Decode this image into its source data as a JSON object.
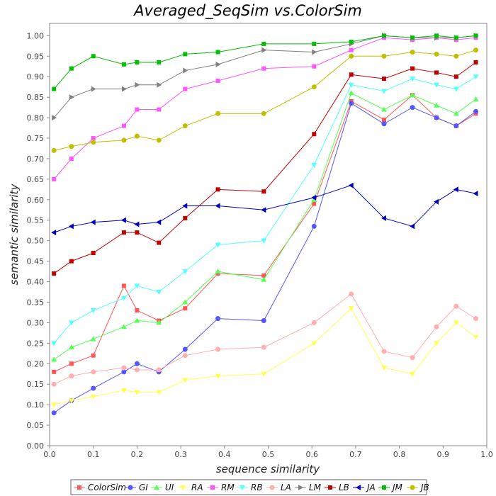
{
  "chart_data": {
    "type": "line",
    "title": "Averaged_SeqSim vs.ColorSim",
    "xlabel": "sequence similarity",
    "ylabel": "semantic similarity",
    "xlim": [
      0.0,
      1.0
    ],
    "ylim": [
      0.0,
      1.03
    ],
    "x_ticks": [
      "0.0",
      "0.1",
      "0.2",
      "0.3",
      "0.4",
      "0.5",
      "0.6",
      "0.7",
      "0.8",
      "0.9",
      "1.0"
    ],
    "y_ticks": [
      "0.00",
      "0.05",
      "0.10",
      "0.15",
      "0.20",
      "0.25",
      "0.30",
      "0.35",
      "0.40",
      "0.45",
      "0.50",
      "0.55",
      "0.60",
      "0.65",
      "0.70",
      "0.75",
      "0.80",
      "0.85",
      "0.90",
      "0.95",
      "1.00"
    ],
    "grid": false,
    "legend_position": "bottom",
    "x": [
      0.01,
      0.05,
      0.1,
      0.17,
      0.2,
      0.25,
      0.31,
      0.385,
      0.49,
      0.605,
      0.69,
      0.765,
      0.83,
      0.885,
      0.93,
      0.975
    ],
    "series": [
      {
        "name": "ColorSim",
        "color": "#ff5555",
        "marker": "square",
        "values": [
          0.18,
          0.2,
          0.22,
          0.39,
          0.33,
          0.305,
          0.335,
          0.42,
          0.415,
          0.59,
          0.84,
          0.795,
          0.855,
          0.8,
          0.78,
          0.81
        ]
      },
      {
        "name": "GI",
        "color": "#5555ff",
        "marker": "circle",
        "values": [
          0.08,
          0.11,
          0.14,
          0.18,
          0.2,
          0.18,
          0.235,
          0.31,
          0.305,
          0.535,
          0.835,
          0.785,
          0.825,
          0.8,
          0.78,
          0.815
        ]
      },
      {
        "name": "UI",
        "color": "#55ff55",
        "marker": "triangle-up",
        "values": [
          0.21,
          0.24,
          0.26,
          0.29,
          0.305,
          0.3,
          0.35,
          0.425,
          0.405,
          0.6,
          0.86,
          0.82,
          0.855,
          0.83,
          0.81,
          0.845
        ]
      },
      {
        "name": "RA",
        "color": "#ffff55",
        "marker": "triangle-down",
        "values": [
          0.1,
          0.11,
          0.12,
          0.135,
          0.13,
          0.13,
          0.16,
          0.17,
          0.175,
          0.25,
          0.335,
          0.19,
          0.175,
          0.25,
          0.3,
          0.265
        ]
      },
      {
        "name": "RM",
        "color": "#ff55ff",
        "marker": "square",
        "values": [
          0.65,
          0.7,
          0.75,
          0.78,
          0.82,
          0.82,
          0.87,
          0.89,
          0.92,
          0.925,
          0.965,
          0.995,
          0.99,
          0.995,
          0.99,
          0.995
        ]
      },
      {
        "name": "RB",
        "color": "#55ffff",
        "marker": "triangle-down",
        "values": [
          0.25,
          0.3,
          0.33,
          0.36,
          0.39,
          0.375,
          0.425,
          0.49,
          0.5,
          0.685,
          0.88,
          0.865,
          0.895,
          0.88,
          0.87,
          0.9
        ]
      },
      {
        "name": "LA",
        "color": "#ffafaf",
        "marker": "circle",
        "values": [
          0.15,
          0.17,
          0.18,
          0.19,
          0.185,
          0.185,
          0.22,
          0.235,
          0.24,
          0.3,
          0.37,
          0.23,
          0.215,
          0.29,
          0.34,
          0.31
        ]
      },
      {
        "name": "LM",
        "color": "#808080",
        "marker": "triangle-right",
        "values": [
          0.8,
          0.85,
          0.87,
          0.87,
          0.88,
          0.88,
          0.915,
          0.93,
          0.965,
          0.96,
          0.98,
          1.0,
          0.995,
          0.995,
          0.995,
          1.0
        ]
      },
      {
        "name": "LB",
        "color": "#c00000",
        "marker": "square",
        "values": [
          0.42,
          0.45,
          0.47,
          0.52,
          0.52,
          0.495,
          0.555,
          0.625,
          0.62,
          0.76,
          0.905,
          0.895,
          0.92,
          0.91,
          0.9,
          0.935
        ]
      },
      {
        "name": "JA",
        "color": "#0000c0",
        "marker": "triangle-left",
        "values": [
          0.52,
          0.535,
          0.545,
          0.55,
          0.54,
          0.545,
          0.585,
          0.585,
          0.575,
          0.605,
          0.635,
          0.555,
          0.535,
          0.595,
          0.625,
          0.615
        ]
      },
      {
        "name": "JM",
        "color": "#00c000",
        "marker": "square",
        "values": [
          0.87,
          0.92,
          0.95,
          0.93,
          0.935,
          0.935,
          0.955,
          0.96,
          0.98,
          0.98,
          0.985,
          1.0,
          0.995,
          1.0,
          0.995,
          1.0
        ]
      },
      {
        "name": "JB",
        "color": "#c0c000",
        "marker": "circle",
        "values": [
          0.72,
          0.73,
          0.74,
          0.745,
          0.755,
          0.745,
          0.78,
          0.81,
          0.81,
          0.875,
          0.95,
          0.95,
          0.96,
          0.955,
          0.95,
          0.965
        ]
      }
    ]
  }
}
